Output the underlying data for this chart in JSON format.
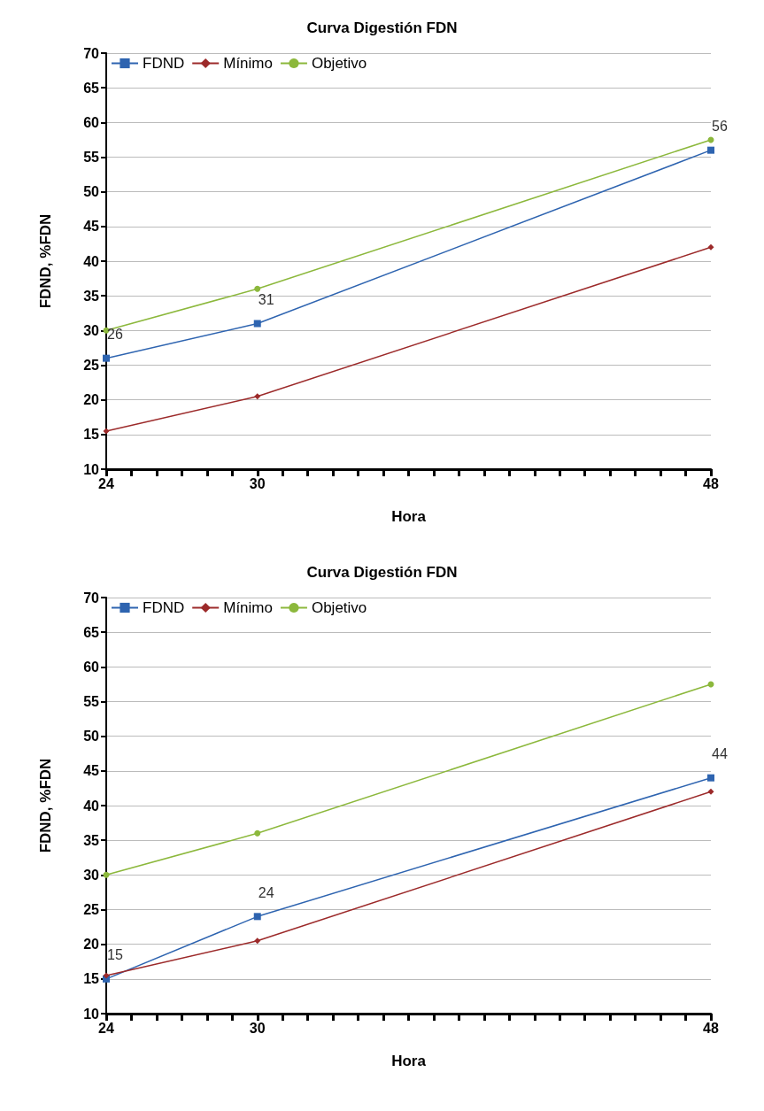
{
  "chart_data": [
    {
      "type": "line",
      "title": "Curva Digestión FDN",
      "xlabel": "Hora",
      "ylabel": "FDND, %FDN",
      "x": [
        24,
        30,
        48
      ],
      "series": [
        {
          "name": "FDND",
          "color": "#2e64b0",
          "values": [
            26,
            31,
            56
          ],
          "marker": "square",
          "value_labels": [
            "26",
            "31",
            "56"
          ]
        },
        {
          "name": "Mínimo",
          "color": "#9c2a2a",
          "values": [
            15.5,
            20.5,
            42
          ],
          "marker": "diamond"
        },
        {
          "name": "Objetivo",
          "color": "#8cb83c",
          "values": [
            30,
            36,
            57.5
          ],
          "marker": "circle"
        }
      ],
      "xlim": [
        24,
        48
      ],
      "xticks": [
        24,
        {
          "value": 25,
          "label": null
        },
        {
          "value": 26,
          "label": null
        },
        {
          "value": 27,
          "label": null
        },
        {
          "value": 28,
          "label": null
        },
        {
          "value": 29,
          "label": null
        },
        30,
        {
          "value": 31,
          "label": null
        },
        {
          "value": 32,
          "label": null
        },
        {
          "value": 33,
          "label": null
        },
        {
          "value": 34,
          "label": null
        },
        {
          "value": 35,
          "label": null
        },
        {
          "value": 36,
          "label": null
        },
        {
          "value": 37,
          "label": null
        },
        {
          "value": 38,
          "label": null
        },
        {
          "value": 39,
          "label": null
        },
        {
          "value": 40,
          "label": null
        },
        {
          "value": 41,
          "label": null
        },
        {
          "value": 42,
          "label": null
        },
        {
          "value": 43,
          "label": null
        },
        {
          "value": 44,
          "label": null
        },
        {
          "value": 45,
          "label": null
        },
        {
          "value": 46,
          "label": null
        },
        {
          "value": 47,
          "label": null
        },
        48
      ],
      "ylim": [
        10,
        70
      ],
      "yticks": [
        10,
        15,
        20,
        25,
        30,
        35,
        40,
        45,
        50,
        55,
        60,
        65,
        70
      ],
      "grid": "y",
      "legend": "top left"
    },
    {
      "type": "line",
      "title": "Curva Digestión FDN",
      "xlabel": "Hora",
      "ylabel": "FDND, %FDN",
      "x": [
        24,
        30,
        48
      ],
      "series": [
        {
          "name": "FDND",
          "color": "#2e64b0",
          "values": [
            15,
            24,
            44
          ],
          "marker": "square",
          "value_labels": [
            "15",
            "24",
            "44"
          ]
        },
        {
          "name": "Mínimo",
          "color": "#9c2a2a",
          "values": [
            15.5,
            20.5,
            42
          ],
          "marker": "diamond"
        },
        {
          "name": "Objetivo",
          "color": "#8cb83c",
          "values": [
            30,
            36,
            57.5
          ],
          "marker": "circle"
        }
      ],
      "xlim": [
        24,
        48
      ],
      "xticks": [
        24,
        {
          "value": 25,
          "label": null
        },
        {
          "value": 26,
          "label": null
        },
        {
          "value": 27,
          "label": null
        },
        {
          "value": 28,
          "label": null
        },
        {
          "value": 29,
          "label": null
        },
        30,
        {
          "value": 31,
          "label": null
        },
        {
          "value": 32,
          "label": null
        },
        {
          "value": 33,
          "label": null
        },
        {
          "value": 34,
          "label": null
        },
        {
          "value": 35,
          "label": null
        },
        {
          "value": 36,
          "label": null
        },
        {
          "value": 37,
          "label": null
        },
        {
          "value": 38,
          "label": null
        },
        {
          "value": 39,
          "label": null
        },
        {
          "value": 40,
          "label": null
        },
        {
          "value": 41,
          "label": null
        },
        {
          "value": 42,
          "label": null
        },
        {
          "value": 43,
          "label": null
        },
        {
          "value": 44,
          "label": null
        },
        {
          "value": 45,
          "label": null
        },
        {
          "value": 46,
          "label": null
        },
        {
          "value": 47,
          "label": null
        },
        48
      ],
      "ylim": [
        10,
        70
      ],
      "yticks": [
        10,
        15,
        20,
        25,
        30,
        35,
        40,
        45,
        50,
        55,
        60,
        65,
        70
      ],
      "grid": "y",
      "legend": "top left"
    }
  ]
}
